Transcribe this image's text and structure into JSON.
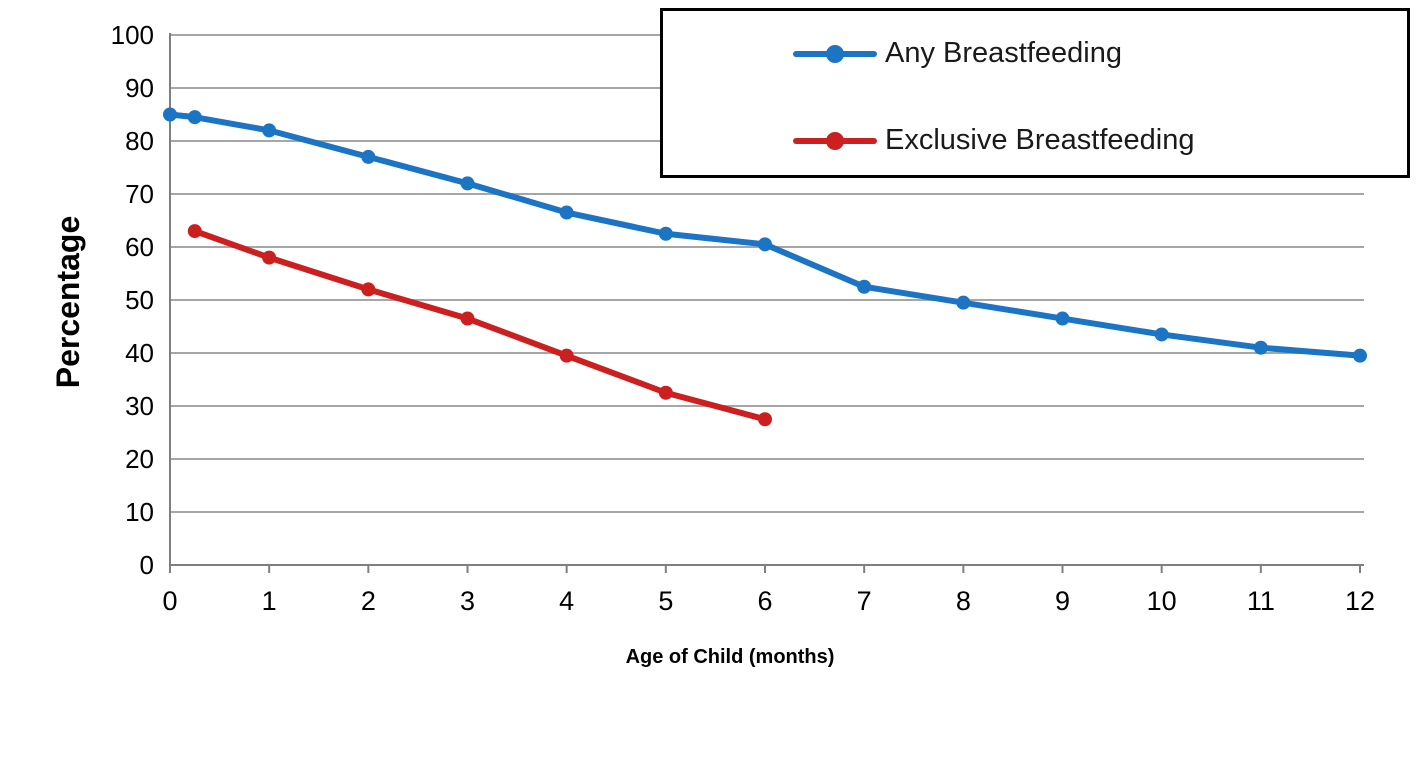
{
  "chart_data": {
    "type": "line",
    "title": "",
    "xlabel": "Age of Child (months)",
    "ylabel": "Percentage",
    "xlim": [
      0,
      12
    ],
    "ylim": [
      0,
      100
    ],
    "x_ticks": [
      0,
      1,
      2,
      3,
      4,
      5,
      6,
      7,
      8,
      9,
      10,
      11,
      12
    ],
    "y_ticks": [
      0,
      10,
      20,
      30,
      40,
      50,
      60,
      70,
      80,
      90,
      100
    ],
    "grid": true,
    "grid_color": "#a6a6a6",
    "axis_color": "#7f7f7f",
    "tick_label_color": "#000000",
    "legend_position": "top-right",
    "series": [
      {
        "name": "Any Breastfeeding",
        "color": "#1b74c4",
        "x": [
          0,
          0.25,
          1,
          2,
          3,
          4,
          5,
          6,
          7,
          8,
          9,
          10,
          11,
          12
        ],
        "y": [
          85,
          84.5,
          82,
          77,
          72,
          66.5,
          62.5,
          60.5,
          52.5,
          49.5,
          46.5,
          43.5,
          41,
          39.5
        ]
      },
      {
        "name": "Exclusive Breastfeeding",
        "color": "#cc2020",
        "x": [
          0.25,
          1,
          2,
          3,
          4,
          5,
          6
        ],
        "y": [
          63,
          58,
          52,
          46.5,
          39.5,
          32.5,
          27.5
        ]
      }
    ]
  }
}
